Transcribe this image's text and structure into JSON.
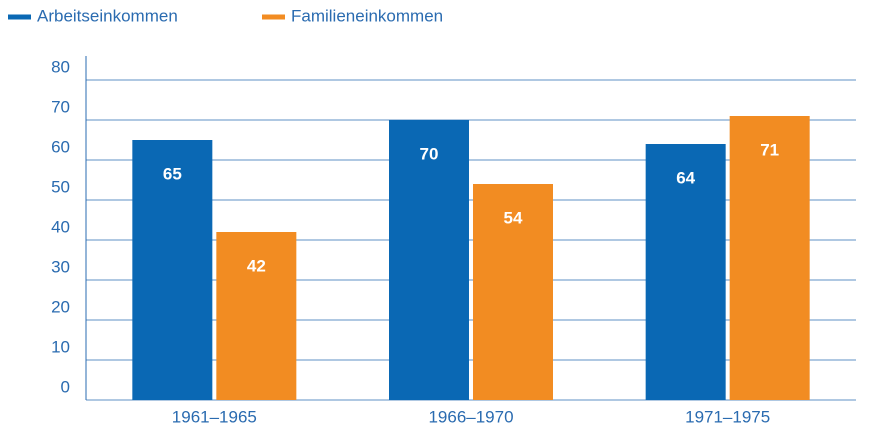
{
  "chart_data": {
    "type": "bar",
    "categories": [
      "1961–1965",
      "1966–1970",
      "1971–1975"
    ],
    "series": [
      {
        "name": "Arbeitseinkommen",
        "color": "#0a68b4",
        "values": [
          65,
          70,
          64
        ]
      },
      {
        "name": "Familieneinkommen",
        "color": "#f28c22",
        "values": [
          42,
          54,
          71
        ]
      }
    ],
    "ylim": [
      0,
      80
    ],
    "yticks": [
      0,
      10,
      20,
      30,
      40,
      50,
      60,
      70,
      80
    ],
    "grid": true,
    "legend": "top"
  }
}
